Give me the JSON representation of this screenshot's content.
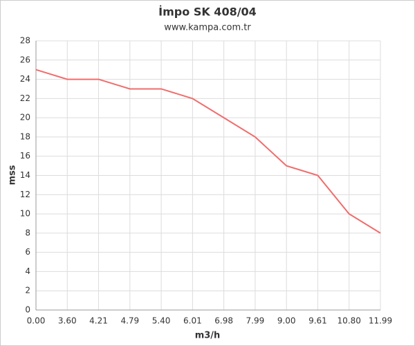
{
  "chart_data": {
    "type": "line",
    "title": "İmpo SK 408/04",
    "subtitle": "www.kampa.com.tr",
    "x_label": "m3/h",
    "y_label": "mss",
    "categories": [
      "0.00",
      "3.60",
      "4.21",
      "4.79",
      "5.40",
      "6.01",
      "6.98",
      "7.99",
      "9.00",
      "9.61",
      "10.80",
      "11.99"
    ],
    "series": [
      {
        "name": "mss",
        "color": "#f26b6b",
        "values": [
          25,
          24,
          24,
          23,
          23,
          22,
          20,
          18,
          15,
          14,
          10,
          8
        ]
      }
    ],
    "ylim": [
      0,
      28
    ],
    "yticks": [
      0,
      2,
      4,
      6,
      8,
      10,
      12,
      14,
      16,
      18,
      20,
      22,
      24,
      26,
      28
    ],
    "grid": true
  }
}
